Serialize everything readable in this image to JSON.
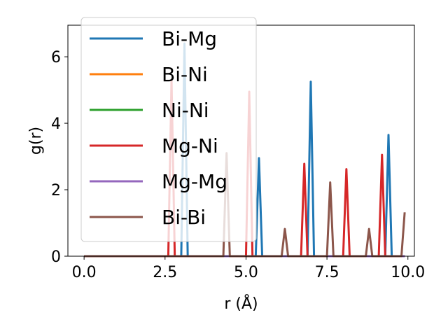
{
  "chart_data": {
    "type": "line",
    "xlabel": "r (Å)",
    "ylabel": "g(r)",
    "xlim": [
      -0.5,
      10.2
    ],
    "ylim": [
      0,
      6.95
    ],
    "xticks": [
      0.0,
      2.5,
      5.0,
      7.5,
      10.0
    ],
    "xtick_labels": [
      "0.0",
      "2.5",
      "5.0",
      "7.5",
      "10.0"
    ],
    "yticks": [
      0,
      2,
      4,
      6
    ],
    "ytick_labels": [
      "0",
      "2",
      "4",
      "6"
    ],
    "grid": false,
    "legend_position": "top-left",
    "series": [
      {
        "name": "Bi-Mg",
        "color": "#1f77b4",
        "x": [
          0.0,
          3.0,
          3.1,
          3.2,
          5.3,
          5.4,
          5.5,
          6.9,
          7.0,
          7.1,
          9.3,
          9.4,
          9.5,
          9.9
        ],
        "y": [
          0,
          0,
          6.4,
          0,
          0,
          2.95,
          0,
          0,
          5.25,
          0,
          0,
          3.65,
          0,
          0
        ]
      },
      {
        "name": "Bi-Ni",
        "color": "#ff7f0e",
        "x": [
          0.0,
          9.9
        ],
        "y": [
          0,
          0
        ]
      },
      {
        "name": "Ni-Ni",
        "color": "#2ca02c",
        "x": [
          0.0,
          9.9
        ],
        "y": [
          0,
          0
        ]
      },
      {
        "name": "Mg-Ni",
        "color": "#d62728",
        "x": [
          0.0,
          2.6,
          2.7,
          2.8,
          5.0,
          5.1,
          5.2,
          6.7,
          6.8,
          6.9,
          8.0,
          8.1,
          8.2,
          9.1,
          9.2,
          9.3,
          9.9
        ],
        "y": [
          0,
          0,
          5.3,
          0,
          0,
          4.95,
          0,
          0,
          2.78,
          0,
          0,
          2.62,
          0,
          0,
          3.05,
          0,
          0
        ]
      },
      {
        "name": "Mg-Mg",
        "color": "#9467bd",
        "x": [
          0.0,
          9.9
        ],
        "y": [
          0,
          0
        ]
      },
      {
        "name": "Bi-Bi",
        "color": "#8c564b",
        "x": [
          0.0,
          4.3,
          4.4,
          4.5,
          6.1,
          6.2,
          6.3,
          7.5,
          7.6,
          7.7,
          8.7,
          8.8,
          8.9,
          9.8,
          9.9
        ],
        "y": [
          0,
          0,
          3.1,
          0,
          0,
          0.82,
          0,
          0,
          2.22,
          0,
          0,
          0.82,
          0,
          0,
          1.32
        ]
      }
    ]
  }
}
